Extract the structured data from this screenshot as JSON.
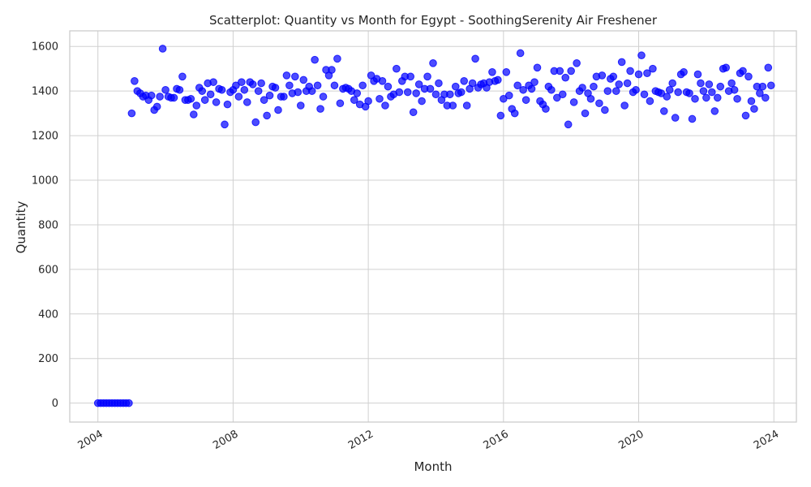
{
  "chart_data": {
    "type": "scatter",
    "title": "Scatterplot: Quantity vs Month for Egypt - SoothingSerenity Air Freshener",
    "xlabel": "Month",
    "ylabel": "Quantity",
    "x_ticks": [
      "2004",
      "2008",
      "2012",
      "2016",
      "2020",
      "2024"
    ],
    "y_ticks": [
      "0",
      "200",
      "400",
      "600",
      "800",
      "1000",
      "1200",
      "1400",
      "1600"
    ],
    "xlim": [
      "2003-03",
      "2024-09"
    ],
    "ylim": [
      -85,
      1670
    ],
    "grid": true,
    "marker_color": "#0000ff",
    "start_month": "2004-01",
    "values": [
      0,
      0,
      0,
      0,
      0,
      0,
      0,
      0,
      0,
      0,
      0,
      0,
      1300,
      1445,
      1400,
      1390,
      1375,
      1380,
      1360,
      1380,
      1315,
      1330,
      1375,
      1590,
      1405,
      1375,
      1370,
      1370,
      1410,
      1405,
      1465,
      1360,
      1360,
      1365,
      1295,
      1335,
      1415,
      1400,
      1360,
      1435,
      1385,
      1440,
      1350,
      1410,
      1405,
      1250,
      1340,
      1395,
      1405,
      1425,
      1375,
      1440,
      1405,
      1350,
      1440,
      1430,
      1260,
      1400,
      1435,
      1360,
      1290,
      1380,
      1420,
      1415,
      1315,
      1375,
      1375,
      1470,
      1425,
      1390,
      1465,
      1395,
      1335,
      1450,
      1400,
      1420,
      1400,
      1540,
      1425,
      1320,
      1375,
      1495,
      1470,
      1495,
      1425,
      1545,
      1345,
      1410,
      1415,
      1410,
      1400,
      1360,
      1390,
      1340,
      1425,
      1330,
      1355,
      1470,
      1445,
      1455,
      1365,
      1445,
      1335,
      1420,
      1375,
      1385,
      1500,
      1395,
      1445,
      1465,
      1395,
      1465,
      1305,
      1390,
      1430,
      1355,
      1410,
      1465,
      1410,
      1525,
      1385,
      1435,
      1360,
      1385,
      1335,
      1385,
      1335,
      1420,
      1390,
      1395,
      1445,
      1335,
      1410,
      1435,
      1545,
      1415,
      1430,
      1435,
      1415,
      1440,
      1485,
      1445,
      1450,
      1290,
      1365,
      1485,
      1380,
      1320,
      1300,
      1425,
      1570,
      1405,
      1360,
      1425,
      1410,
      1440,
      1505,
      1355,
      1340,
      1320,
      1420,
      1405,
      1490,
      1370,
      1490,
      1385,
      1460,
      1250,
      1490,
      1350,
      1525,
      1400,
      1415,
      1300,
      1390,
      1365,
      1420,
      1465,
      1345,
      1470,
      1315,
      1400,
      1455,
      1465,
      1400,
      1430,
      1530,
      1335,
      1435,
      1490,
      1395,
      1405,
      1475,
      1560,
      1385,
      1480,
      1355,
      1500,
      1400,
      1395,
      1390,
      1310,
      1375,
      1405,
      1435,
      1280,
      1395,
      1475,
      1485,
      1395,
      1390,
      1275,
      1365,
      1475,
      1435,
      1400,
      1370,
      1430,
      1395,
      1310,
      1370,
      1420,
      1500,
      1505,
      1400,
      1435,
      1405,
      1365,
      1480,
      1490,
      1290,
      1465,
      1355,
      1320,
      1420,
      1390,
      1420,
      1370,
      1505,
      1425
    ]
  }
}
